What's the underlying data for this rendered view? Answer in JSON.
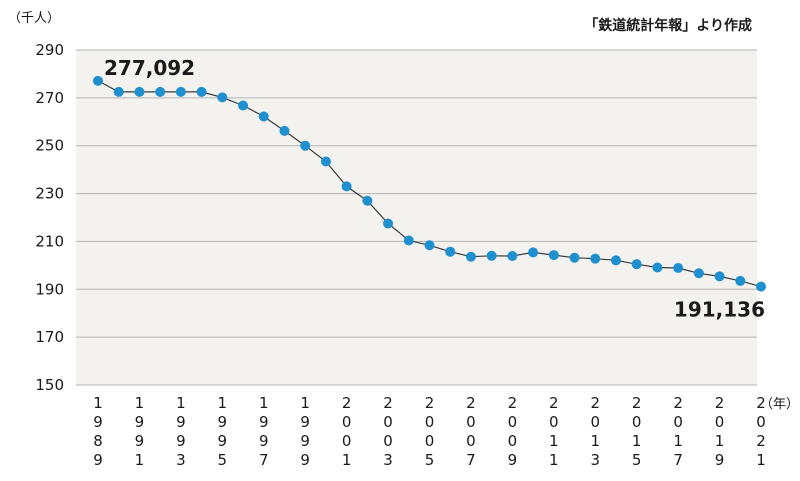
{
  "chart_data": {
    "type": "line",
    "source_note": "「鉄道統計年報」より作成",
    "y_unit_label": "（千人）",
    "x_unit_label": "（年）",
    "ylim": [
      150,
      290
    ],
    "yticks": [
      150,
      170,
      190,
      210,
      230,
      250,
      270,
      290
    ],
    "grid": true,
    "x": [
      1989,
      1990,
      1991,
      1992,
      1993,
      1994,
      1995,
      1996,
      1997,
      1998,
      1999,
      2000,
      2001,
      2002,
      2003,
      2004,
      2005,
      2006,
      2007,
      2008,
      2009,
      2010,
      2011,
      2012,
      2013,
      2014,
      2015,
      2016,
      2017,
      2018,
      2019,
      2020,
      2021
    ],
    "x_tick_labels": [
      "1989",
      "1991",
      "1993",
      "1995",
      "1997",
      "1999",
      "2001",
      "2003",
      "2005",
      "2007",
      "2009",
      "2011",
      "2013",
      "2015",
      "2017",
      "2019",
      "2021"
    ],
    "series": [
      {
        "color": "#1e90d0",
        "values": [
          277.092,
          272.5,
          272.5,
          272.5,
          272.5,
          272.5,
          270.2,
          266.8,
          262.2,
          256.2,
          250.0,
          243.4,
          233.0,
          227.0,
          217.5,
          210.4,
          208.4,
          205.7,
          203.6,
          204.0,
          203.9,
          205.4,
          204.3,
          203.2,
          202.8,
          202.1,
          200.5,
          199.1,
          198.9,
          196.7,
          195.4,
          193.5,
          191.136
        ]
      }
    ],
    "annotations": [
      {
        "x": 1989,
        "text": "277,092"
      },
      {
        "x": 2021,
        "text": "191,136"
      }
    ]
  }
}
